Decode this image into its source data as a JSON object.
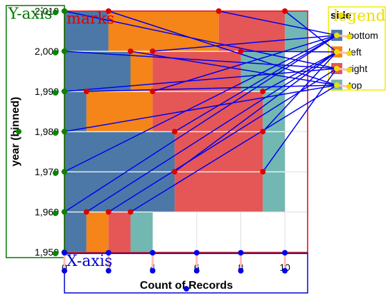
{
  "chart_data": {
    "type": "bar",
    "orientation": "horizontal-stacked",
    "xlabel": "Count of Records",
    "ylabel": "year (binned)",
    "xlim": [
      0,
      11
    ],
    "ylim": [
      1950,
      2010
    ],
    "x_ticks": [
      0,
      2,
      4,
      6,
      8,
      10
    ],
    "x_tick_labels": [
      "0",
      "2",
      "4",
      "6",
      "8",
      "10"
    ],
    "y_ticks": [
      1950,
      1960,
      1970,
      1980,
      1990,
      2000,
      2010
    ],
    "y_tick_labels": [
      "1,950",
      "1,960",
      "1,970",
      "1,980",
      "1,990",
      "2,000",
      "2,010"
    ],
    "bin_size": 10,
    "categories": [
      "1950",
      "1960",
      "1970",
      "1980",
      "1990",
      "2000"
    ],
    "series": [
      {
        "name": "bottom",
        "color": "#4c78a8",
        "values": [
          1,
          5,
          5,
          1,
          3,
          2
        ]
      },
      {
        "name": "left",
        "color": "#f58518",
        "values": [
          1,
          0,
          0,
          3,
          1,
          5
        ]
      },
      {
        "name": "right",
        "color": "#e45756",
        "values": [
          1,
          4,
          4,
          5,
          4,
          3
        ]
      },
      {
        "name": "top",
        "color": "#72b7b2",
        "values": [
          1,
          1,
          1,
          1,
          2,
          1
        ]
      }
    ],
    "legend": {
      "title": "side",
      "position": "right"
    },
    "grid": true
  },
  "overlay": {
    "y_axis_label": "Y-axis",
    "marks_label": "marks",
    "legend_label": "legend",
    "x_axis_label": "X-axis"
  },
  "colors": {
    "grid": "#dddddd",
    "bar_separator": "#ffffff",
    "marks_box": "#dd0000",
    "y_axis_box": "#007700",
    "x_axis_box": "#0000cc",
    "legend_box": "#eeee00",
    "link_line": "#0000ee",
    "mark_dot": "#dd0000",
    "y_axis_dot": "#008800",
    "x_axis_dot": "#0000ee",
    "legend_dot": "#eedd00"
  }
}
